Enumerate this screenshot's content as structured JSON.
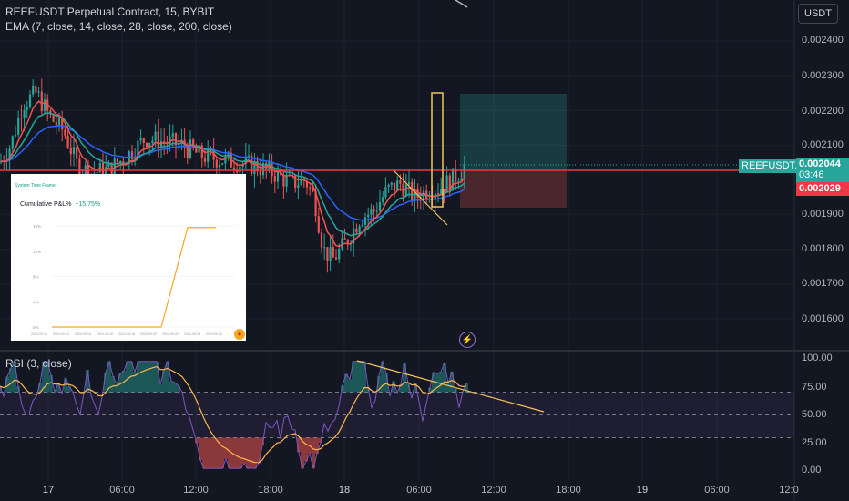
{
  "header": {
    "symbol_line": "REEFUSDT Perpetual Contract, 15, BYBIT",
    "indicator_line": "EMA (7, close, 14, close, 28, close, 200, close)",
    "currency_button": "USDT"
  },
  "price_axis": {
    "labels": [
      "0.002400",
      "0.002300",
      "0.002200",
      "0.002100",
      "0.001900",
      "0.001800",
      "0.001700",
      "0.001600"
    ]
  },
  "tags": {
    "symbol_tag": "REEFUSDT.P",
    "last_price": "0.002044",
    "countdown": "03:46",
    "ema_price": "0.002029"
  },
  "rsi": {
    "label": "RSI (3, close)",
    "levels": [
      "100.00",
      "75.00",
      "50.00",
      "25.00",
      "0.00"
    ]
  },
  "time_axis": {
    "labels": [
      "17",
      "06:00",
      "12:00",
      "18:00",
      "18",
      "06:00",
      "12:00",
      "18:00",
      "19",
      "06:00",
      "12:0"
    ]
  },
  "overlay": {
    "header_text": "System Time Frame",
    "title": "Cumulative P&L%",
    "value": "+15.75%",
    "y_ticks": [
      "16%",
      "12%",
      "8%",
      "4%",
      "0%"
    ],
    "x_ticks": [
      "2024-09-10",
      "2024-09-12",
      "2024-09-14",
      "2024-09-16",
      "2024-09-18",
      "2024-09-20",
      "2024-09-22",
      "2024-09-24",
      "2024-09-26"
    ]
  },
  "colors": {
    "background": "#131722",
    "up_candle": "#26a69a",
    "down_candle": "#ef5350",
    "ema7": "#ef5350",
    "ema14": "#26a69a",
    "ema28": "#2962ff",
    "rsi_line": "#7e57c2",
    "rsi_ma": "#ffb74d",
    "price_line": "#f23645",
    "trendline": "#f5c35b"
  },
  "icons": {
    "bolt": "lightning-icon",
    "badge": "exchange-badge-icon"
  }
}
